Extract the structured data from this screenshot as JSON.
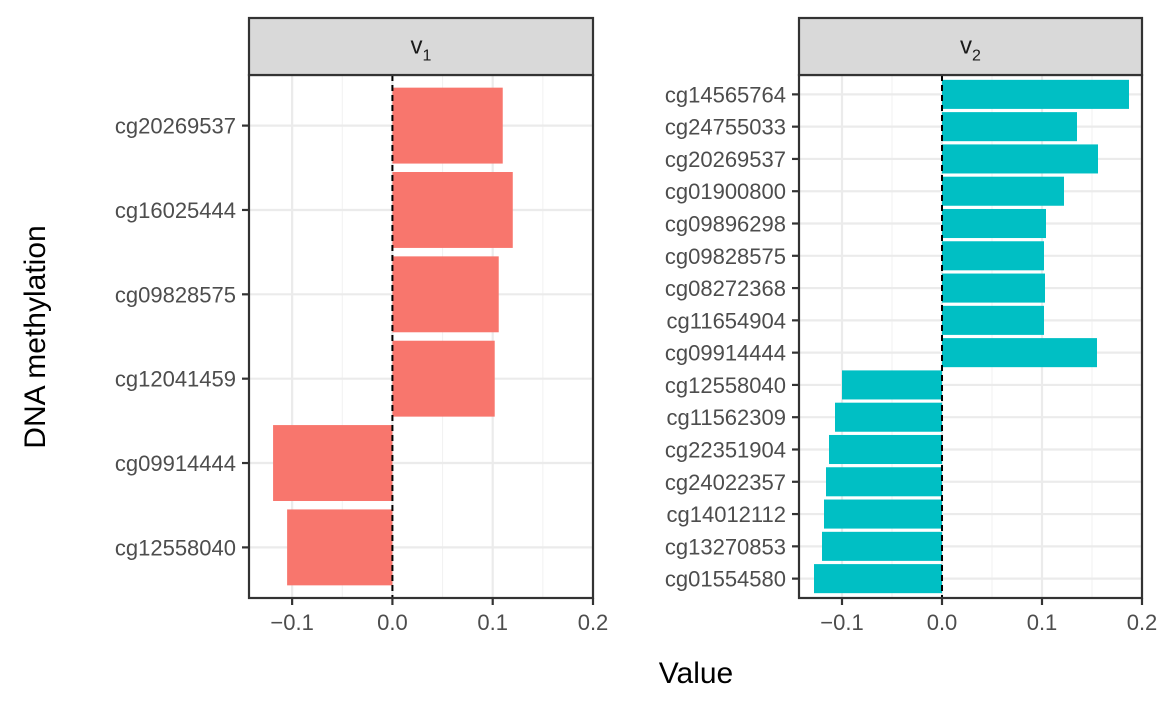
{
  "chart_data": {
    "type": "bar",
    "orientation": "horizontal",
    "xlabel": "Value",
    "ylabel": "DNA methylation",
    "xlim": [
      -0.143,
      0.2
    ],
    "xticks": [
      -0.1,
      0.0,
      0.1,
      0.2
    ],
    "xtick_labels": [
      "−0.1",
      "0.0",
      "0.1",
      "0.2"
    ],
    "grid": true,
    "reference_line": {
      "x": 0,
      "style": "dashed"
    },
    "panels": [
      {
        "strip_base": "v",
        "strip_sub": "1",
        "color": "#F8766D",
        "categories": [
          "cg20269537",
          "cg16025444",
          "cg09828575",
          "cg12041459",
          "cg09914444",
          "cg12558040"
        ],
        "values": [
          0.11,
          0.12,
          0.106,
          0.102,
          -0.119,
          -0.105
        ]
      },
      {
        "strip_base": "v",
        "strip_sub": "2",
        "color": "#00BFC4",
        "categories": [
          "cg14565764",
          "cg24755033",
          "cg20269537",
          "cg01900800",
          "cg09896298",
          "cg09828575",
          "cg08272368",
          "cg11654904",
          "cg09914444",
          "cg12558040",
          "cg11562309",
          "cg22351904",
          "cg24022357",
          "cg14012112",
          "cg13270853",
          "cg01554580"
        ],
        "values": [
          0.187,
          0.135,
          0.156,
          0.122,
          0.104,
          0.102,
          0.103,
          0.102,
          0.155,
          -0.1,
          -0.107,
          -0.113,
          -0.116,
          -0.118,
          -0.12,
          -0.128
        ]
      }
    ]
  }
}
